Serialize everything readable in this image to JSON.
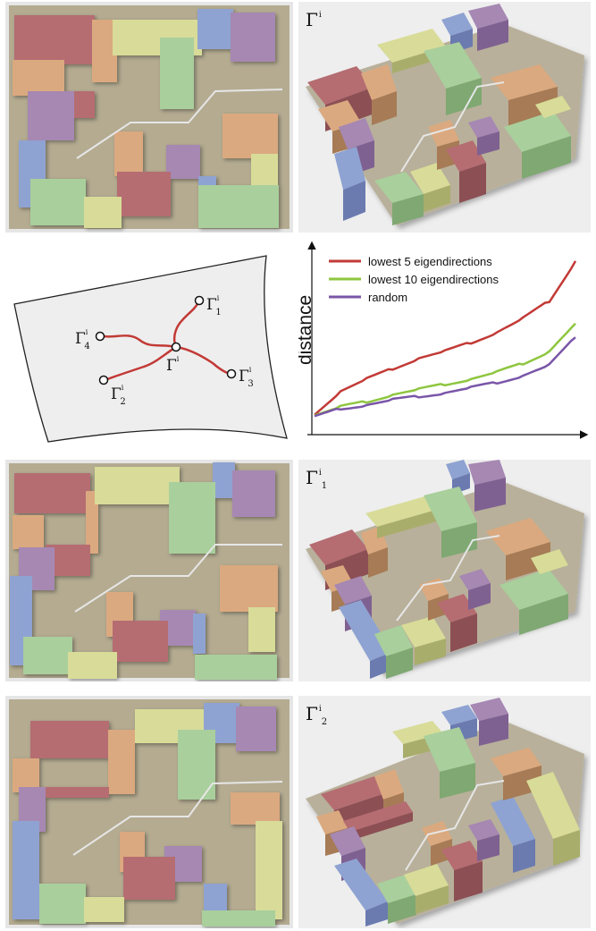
{
  "layouts": [
    {
      "label_main": "Γ",
      "label_sup": "i",
      "label_sub": ""
    },
    {
      "label_main": "Γ",
      "label_sup": "i",
      "label_sub": "1"
    },
    {
      "label_main": "Γ",
      "label_sup": "i",
      "label_sub": "2"
    }
  ],
  "schematic": {
    "center": {
      "main": "Γ",
      "sup": "i",
      "sub": ""
    },
    "neighbors": [
      {
        "main": "Γ",
        "sup": "i",
        "sub": "1"
      },
      {
        "main": "Γ",
        "sup": "i",
        "sub": "2"
      },
      {
        "main": "Γ",
        "sup": "i",
        "sub": "3"
      },
      {
        "main": "Γ",
        "sup": "i",
        "sub": "4"
      }
    ]
  },
  "colors": {
    "red": "#c23a36",
    "green": "#8ec63f",
    "purple": "#7a56a8",
    "plan_bg": "#b4ab91",
    "block_red": "#b56d72",
    "block_yellow": "#d8dc98",
    "block_green": "#a9cf9c",
    "block_blue": "#8fa3d2",
    "block_purple": "#a688b3",
    "block_orange": "#dba97f"
  },
  "chart_data": {
    "type": "line",
    "xlabel": "",
    "ylabel": "distance",
    "legend_position": "top-left",
    "ylim": [
      0,
      1
    ],
    "x": [
      0,
      0.1,
      0.2,
      0.3,
      0.4,
      0.5,
      0.6,
      0.7,
      0.8,
      0.9,
      1.0
    ],
    "series": [
      {
        "name": "lowest 5 eigendirections",
        "color": "#c23a36",
        "values": [
          0.1,
          0.23,
          0.3,
          0.36,
          0.42,
          0.46,
          0.51,
          0.57,
          0.65,
          0.75,
          0.98
        ]
      },
      {
        "name": "lowest 10 eigendirections",
        "color": "#8ec63f",
        "values": [
          0.09,
          0.14,
          0.17,
          0.21,
          0.24,
          0.27,
          0.3,
          0.34,
          0.39,
          0.46,
          0.62
        ]
      },
      {
        "name": "random",
        "color": "#7a56a8",
        "values": [
          0.08,
          0.13,
          0.15,
          0.18,
          0.2,
          0.22,
          0.25,
          0.28,
          0.32,
          0.38,
          0.54
        ]
      }
    ]
  }
}
